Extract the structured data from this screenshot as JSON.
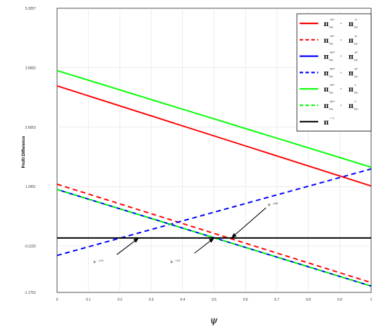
{
  "chart_data": {
    "type": "line",
    "title": "",
    "xlabel": "ψ",
    "ylabel": "Profit Difference",
    "xlim": [
      0,
      1
    ],
    "ylim": [
      -1.1752,
      5.3257
    ],
    "grid": true,
    "x_ticks": [
      "0",
      "0.1",
      "0.2",
      "0.3",
      "0.4",
      "0.5",
      "0.6",
      "0.7",
      "0.8",
      "0.9",
      "1"
    ],
    "y_ticks": [
      {
        "value": 5.3257,
        "label": "5.3257"
      },
      {
        "value": 3.9655,
        "label": "3.9655"
      },
      {
        "value": 2.6053,
        "label": "2.6053"
      },
      {
        "value": 1.2451,
        "label": "1.2451"
      },
      {
        "value": -0.115,
        "label": "-0.1150"
      },
      {
        "value": -1.1752,
        "label": "-1.1752"
      }
    ],
    "legend_position": "top-right",
    "series": [
      {
        "legend": {
          "l_sup": "SP*",
          "l_sub": "RD",
          "r_sup": "S*",
          "r_sub": "SD"
        },
        "color": "#ff0000",
        "dash": false,
        "x": [
          0,
          1
        ],
        "y": [
          3.55,
          1.26
        ]
      },
      {
        "legend": {
          "l_sup": "SP*",
          "l_sub": "RD",
          "r_sup": "S*",
          "r_sub": "SD"
        },
        "color": "#ff0000",
        "dash": true,
        "x": [
          0,
          1
        ],
        "y": [
          1.3,
          -0.95
        ]
      },
      {
        "legend": {
          "l_sup": "MP*",
          "l_sub": "RD",
          "r_sup": "M*",
          "r_sub": "SD"
        },
        "color": "#0000ff",
        "dash": false,
        "x": [
          0,
          1
        ],
        "y": [
          1.18,
          -1.03
        ]
      },
      {
        "legend": {
          "l_sup": "MP*",
          "l_sub": "RD",
          "r_sup": "M*",
          "r_sub": "SD"
        },
        "color": "#0000ff",
        "dash": true,
        "x": [
          0,
          1
        ],
        "y": [
          -0.33,
          1.65
        ]
      },
      {
        "legend": {
          "l_sup": "SP*",
          "l_sub": "RD",
          "r_sup": "I*",
          "r_sub": "RD"
        },
        "color": "#00ff00",
        "dash": false,
        "x": [
          0,
          1
        ],
        "y": [
          3.9,
          1.69
        ]
      },
      {
        "legend": {
          "l_sup": "MP*",
          "l_sub": "RD",
          "r_sup": "I*",
          "r_sub": "RD"
        },
        "color": "#00ff00",
        "dash": true,
        "x": [
          0,
          1
        ],
        "y": [
          1.18,
          -1.03
        ]
      },
      {
        "legend": {
          "l_sup": "= 0",
          "l_sub": "",
          "r_sup": "",
          "r_sub": ""
        },
        "color": "#000000",
        "dash": false,
        "x": [
          0,
          1
        ],
        "y": [
          0.07,
          0.07
        ]
      }
    ],
    "legend_symbol": "π",
    "legend_separator": "o",
    "annotations": [
      {
        "label": "ψ = 1/4",
        "main": "ψ",
        "sup": "=1/4",
        "arrow_to": [
          0.26,
          0.07
        ]
      },
      {
        "label": "ψ = 1/2",
        "main": "ψ",
        "sup": "=1/2",
        "arrow_to": [
          0.5,
          0.07
        ]
      },
      {
        "label": "ψ = 5/8",
        "main": "ψ",
        "sup": "=5/8",
        "arrow_to": [
          0.555,
          0.07
        ]
      }
    ]
  }
}
